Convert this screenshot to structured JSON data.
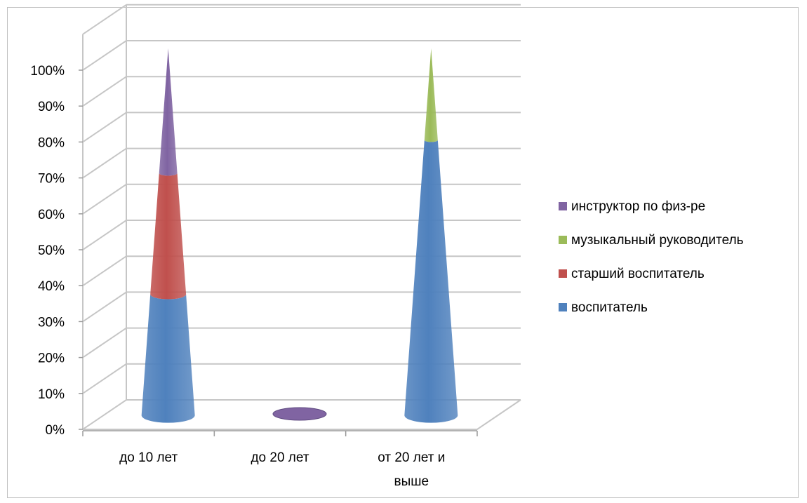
{
  "chart_data": {
    "type": "bar",
    "style": "3d-cone-stacked-100",
    "categories": [
      "до 10 лет",
      "до 20 лет",
      "от 20 лет и выше"
    ],
    "category_lines": [
      [
        "до 10 лет"
      ],
      [
        "до 20 лет"
      ],
      [
        "от 20 лет и",
        "выше"
      ]
    ],
    "y_ticks": [
      "0%",
      "10%",
      "20%",
      "30%",
      "40%",
      "50%",
      "60%",
      "70%",
      "80%",
      "90%",
      "100%"
    ],
    "ylim": [
      0,
      100
    ],
    "grid": true,
    "legend_position": "right",
    "series": [
      {
        "name": "воспитатель",
        "color": "#4f81bd",
        "values": [
          33,
          0,
          75
        ]
      },
      {
        "name": "старший воспитатель",
        "color": "#c0504d",
        "values": [
          33,
          0,
          0
        ]
      },
      {
        "name": "музыкальный руководитель",
        "color": "#9bbb59",
        "values": [
          0,
          0,
          25
        ]
      },
      {
        "name": "инструктор по физ-ре",
        "color": "#8064a2",
        "values": [
          34,
          0,
          0
        ]
      }
    ],
    "legend_order": [
      "инструктор по физ-ре",
      "музыкальный руководитель",
      "старший воспитатель",
      "воспитатель"
    ]
  }
}
